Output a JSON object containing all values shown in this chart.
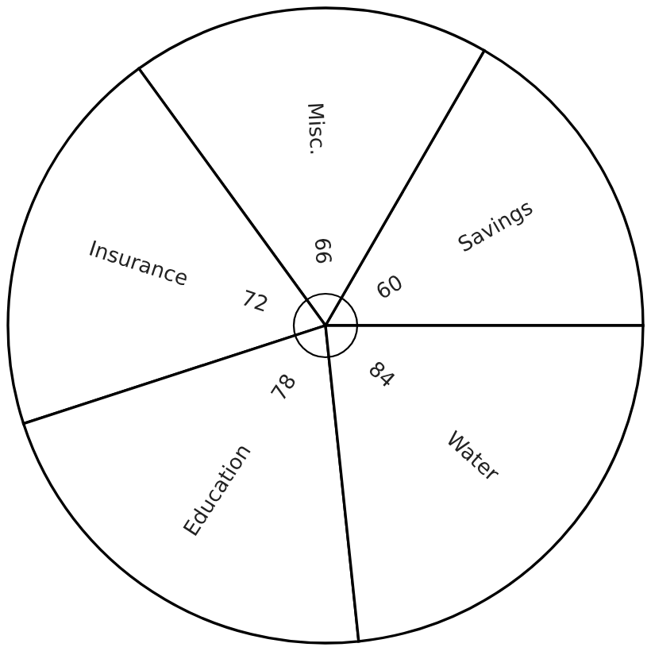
{
  "chart_data": {
    "type": "pie",
    "categories": [
      "Savings",
      "Misc.",
      "Insurance",
      "Education",
      "Water"
    ],
    "values": [
      60,
      66,
      72,
      78,
      84
    ],
    "colors": [
      "#ffffff",
      "#ffffff",
      "#ffffff",
      "#ffffff",
      "#ffffff"
    ],
    "data_labels": true
  }
}
